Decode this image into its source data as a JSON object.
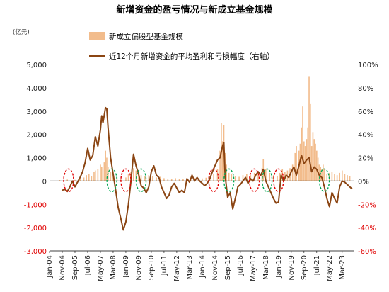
{
  "chart_data": {
    "type": "bar+line",
    "title": "新增资金的盈亏情况与新成立基金规模",
    "left_unit": "(亿元)",
    "left_ylim": [
      -3000,
      5000
    ],
    "left_ticks": [
      "5,000",
      "4,000",
      "3,000",
      "2,000",
      "1,000",
      "0",
      "-1,000",
      "-2,000",
      "-3,000"
    ],
    "right_ylim": [
      -60,
      100
    ],
    "right_ticks": [
      "100%",
      "80%",
      "60%",
      "40%",
      "20%",
      "0%",
      "-20%",
      "-40%",
      "-60%"
    ],
    "x_range": [
      "2004-01",
      "2023-12"
    ],
    "x_ticks": [
      "Jan-04",
      "Nov-04",
      "Sep-05",
      "Jul-06",
      "May-07",
      "Mar-08",
      "Jan-09",
      "Nov-09",
      "Sep-10",
      "Jul-11",
      "May-12",
      "Mar-13",
      "Jan-14",
      "Nov-14",
      "Sep-15",
      "Jul-16",
      "May-17",
      "Mar-18",
      "Jan-19",
      "Nov-19",
      "Sep-20",
      "Jul-21",
      "May-22",
      "Mar-23"
    ],
    "legend": [
      "新成立偏股型基金规模",
      "近12个月新增资金的平均盈利和亏损幅度（右轴）"
    ],
    "series": [
      {
        "name": "新成立偏股型基金规模",
        "axis": "left",
        "color": "#f2bc8c",
        "points": [
          [
            "2004-09",
            40
          ],
          [
            "2005-03",
            60
          ],
          [
            "2005-09",
            50
          ],
          [
            "2006-01",
            80
          ],
          [
            "2006-04",
            150
          ],
          [
            "2006-06",
            250
          ],
          [
            "2006-08",
            300
          ],
          [
            "2006-10",
            200
          ],
          [
            "2006-12",
            400
          ],
          [
            "2007-01",
            450
          ],
          [
            "2007-03",
            500
          ],
          [
            "2007-05",
            700
          ],
          [
            "2007-06",
            600
          ],
          [
            "2007-08",
            800
          ],
          [
            "2007-09",
            1300
          ],
          [
            "2007-10",
            1000
          ],
          [
            "2007-11",
            600
          ],
          [
            "2008-01",
            400
          ],
          [
            "2008-03",
            250
          ],
          [
            "2008-06",
            150
          ],
          [
            "2008-09",
            100
          ],
          [
            "2009-01",
            150
          ],
          [
            "2009-03",
            300
          ],
          [
            "2009-05",
            400
          ],
          [
            "2009-07",
            550
          ],
          [
            "2009-09",
            450
          ],
          [
            "2009-11",
            350
          ],
          [
            "2010-01",
            250
          ],
          [
            "2010-04",
            200
          ],
          [
            "2010-07",
            250
          ],
          [
            "2010-10",
            200
          ],
          [
            "2011-01",
            150
          ],
          [
            "2011-04",
            180
          ],
          [
            "2011-07",
            120
          ],
          [
            "2011-10",
            100
          ],
          [
            "2012-01",
            100
          ],
          [
            "2012-04",
            120
          ],
          [
            "2012-07",
            90
          ],
          [
            "2012-10",
            80
          ],
          [
            "2013-01",
            100
          ],
          [
            "2013-04",
            120
          ],
          [
            "2013-07",
            130
          ],
          [
            "2013-10",
            120
          ],
          [
            "2014-01",
            110
          ],
          [
            "2014-04",
            140
          ],
          [
            "2014-07",
            200
          ],
          [
            "2014-10",
            300
          ],
          [
            "2015-01",
            500
          ],
          [
            "2015-03",
            1300
          ],
          [
            "2015-04",
            2500
          ],
          [
            "2015-05",
            1700
          ],
          [
            "2015-06",
            2400
          ],
          [
            "2015-07",
            1200
          ],
          [
            "2015-08",
            700
          ],
          [
            "2015-10",
            350
          ],
          [
            "2015-12",
            300
          ],
          [
            "2016-03",
            200
          ],
          [
            "2016-06",
            180
          ],
          [
            "2016-09",
            250
          ],
          [
            "2016-12",
            300
          ],
          [
            "2017-03",
            250
          ],
          [
            "2017-06",
            350
          ],
          [
            "2017-09",
            400
          ],
          [
            "2017-12",
            550
          ],
          [
            "2018-01",
            950
          ],
          [
            "2018-03",
            500
          ],
          [
            "2018-06",
            350
          ],
          [
            "2018-09",
            250
          ],
          [
            "2018-12",
            200
          ],
          [
            "2019-02",
            350
          ],
          [
            "2019-04",
            500
          ],
          [
            "2019-06",
            400
          ],
          [
            "2019-08",
            450
          ],
          [
            "2019-10",
            550
          ],
          [
            "2019-12",
            700
          ],
          [
            "2020-02",
            1200
          ],
          [
            "2020-03",
            1500
          ],
          [
            "2020-05",
            1300
          ],
          [
            "2020-06",
            1600
          ],
          [
            "2020-07",
            2300
          ],
          [
            "2020-08",
            3200
          ],
          [
            "2020-09",
            1700
          ],
          [
            "2020-10",
            1500
          ],
          [
            "2020-11",
            1800
          ],
          [
            "2020-12",
            2300
          ],
          [
            "2021-01",
            4500
          ],
          [
            "2021-02",
            3300
          ],
          [
            "2021-03",
            1500
          ],
          [
            "2021-04",
            2100
          ],
          [
            "2021-05",
            1800
          ],
          [
            "2021-06",
            1600
          ],
          [
            "2021-07",
            1300
          ],
          [
            "2021-08",
            1000
          ],
          [
            "2021-09",
            700
          ],
          [
            "2021-10",
            600
          ],
          [
            "2021-11",
            500
          ],
          [
            "2021-12",
            700
          ],
          [
            "2022-01",
            500
          ],
          [
            "2022-03",
            300
          ],
          [
            "2022-05",
            350
          ],
          [
            "2022-07",
            400
          ],
          [
            "2022-09",
            300
          ],
          [
            "2022-11",
            250
          ],
          [
            "2023-01",
            350
          ],
          [
            "2023-03",
            450
          ],
          [
            "2023-05",
            300
          ],
          [
            "2023-07",
            250
          ],
          [
            "2023-09",
            200
          ]
        ]
      },
      {
        "name": "近12个月新增资金的平均盈利和亏损幅度（右轴）",
        "axis": "right",
        "color": "#8b4513",
        "points": [
          [
            "2004-11",
            -8
          ],
          [
            "2005-01",
            -7
          ],
          [
            "2005-03",
            -9
          ],
          [
            "2005-05",
            -5
          ],
          [
            "2005-07",
            0
          ],
          [
            "2005-09",
            -5
          ],
          [
            "2005-11",
            -1
          ],
          [
            "2006-01",
            3
          ],
          [
            "2006-03",
            8
          ],
          [
            "2006-05",
            16
          ],
          [
            "2006-07",
            28
          ],
          [
            "2006-09",
            18
          ],
          [
            "2006-11",
            22
          ],
          [
            "2007-01",
            38
          ],
          [
            "2007-03",
            30
          ],
          [
            "2007-05",
            44
          ],
          [
            "2007-06",
            56
          ],
          [
            "2007-07",
            50
          ],
          [
            "2007-09",
            63
          ],
          [
            "2007-10",
            62
          ],
          [
            "2007-11",
            46
          ],
          [
            "2008-01",
            20
          ],
          [
            "2008-03",
            6
          ],
          [
            "2008-05",
            -8
          ],
          [
            "2008-07",
            -23
          ],
          [
            "2008-09",
            -32
          ],
          [
            "2008-11",
            -42
          ],
          [
            "2009-01",
            -35
          ],
          [
            "2009-03",
            -20
          ],
          [
            "2009-05",
            0
          ],
          [
            "2009-07",
            23
          ],
          [
            "2009-09",
            13
          ],
          [
            "2009-11",
            6
          ],
          [
            "2010-01",
            -4
          ],
          [
            "2010-03",
            -6
          ],
          [
            "2010-05",
            -10
          ],
          [
            "2010-07",
            -5
          ],
          [
            "2010-09",
            8
          ],
          [
            "2010-11",
            13
          ],
          [
            "2011-01",
            5
          ],
          [
            "2011-03",
            3
          ],
          [
            "2011-05",
            -5
          ],
          [
            "2011-07",
            -10
          ],
          [
            "2011-09",
            -15
          ],
          [
            "2011-11",
            -12
          ],
          [
            "2012-01",
            -5
          ],
          [
            "2012-03",
            -2
          ],
          [
            "2012-05",
            -6
          ],
          [
            "2012-07",
            -10
          ],
          [
            "2012-09",
            -8
          ],
          [
            "2012-11",
            -10
          ],
          [
            "2013-01",
            2
          ],
          [
            "2013-03",
            -1
          ],
          [
            "2013-05",
            5
          ],
          [
            "2013-07",
            0
          ],
          [
            "2013-09",
            3
          ],
          [
            "2013-11",
            0
          ],
          [
            "2014-01",
            -2
          ],
          [
            "2014-03",
            -4
          ],
          [
            "2014-05",
            -2
          ],
          [
            "2014-07",
            2
          ],
          [
            "2014-09",
            8
          ],
          [
            "2014-11",
            13
          ],
          [
            "2015-01",
            18
          ],
          [
            "2015-03",
            20
          ],
          [
            "2015-05",
            30
          ],
          [
            "2015-06",
            33
          ],
          [
            "2015-07",
            5
          ],
          [
            "2015-09",
            -14
          ],
          [
            "2015-11",
            -10
          ],
          [
            "2016-01",
            -24
          ],
          [
            "2016-03",
            -15
          ],
          [
            "2016-05",
            -5
          ],
          [
            "2016-07",
            -3
          ],
          [
            "2016-09",
            0
          ],
          [
            "2016-11",
            3
          ],
          [
            "2017-01",
            -2
          ],
          [
            "2017-03",
            2
          ],
          [
            "2017-05",
            0
          ],
          [
            "2017-07",
            5
          ],
          [
            "2017-09",
            8
          ],
          [
            "2017-11",
            5
          ],
          [
            "2018-01",
            10
          ],
          [
            "2018-03",
            0
          ],
          [
            "2018-05",
            -5
          ],
          [
            "2018-07",
            -10
          ],
          [
            "2018-09",
            -15
          ],
          [
            "2018-11",
            -19
          ],
          [
            "2019-01",
            -18
          ],
          [
            "2019-03",
            5
          ],
          [
            "2019-05",
            0
          ],
          [
            "2019-07",
            5
          ],
          [
            "2019-09",
            3
          ],
          [
            "2019-11",
            8
          ],
          [
            "2020-01",
            12
          ],
          [
            "2020-03",
            5
          ],
          [
            "2020-05",
            13
          ],
          [
            "2020-07",
            22
          ],
          [
            "2020-09",
            15
          ],
          [
            "2020-11",
            18
          ],
          [
            "2021-01",
            20
          ],
          [
            "2021-03",
            8
          ],
          [
            "2021-05",
            12
          ],
          [
            "2021-07",
            10
          ],
          [
            "2021-09",
            5
          ],
          [
            "2021-11",
            3
          ],
          [
            "2022-01",
            -5
          ],
          [
            "2022-03",
            -15
          ],
          [
            "2022-05",
            -22
          ],
          [
            "2022-07",
            -10
          ],
          [
            "2022-09",
            -15
          ],
          [
            "2022-11",
            -19
          ],
          [
            "2023-01",
            -5
          ],
          [
            "2023-03",
            0
          ],
          [
            "2023-05",
            -1
          ],
          [
            "2023-07",
            -3
          ],
          [
            "2023-09",
            -5
          ],
          [
            "2023-11",
            -7
          ]
        ]
      }
    ],
    "circles": [
      {
        "date": "2005-04",
        "color": "#e00000"
      },
      {
        "date": "2008-02",
        "color": "#00a651"
      },
      {
        "date": "2009-01",
        "color": "#e00000"
      },
      {
        "date": "2010-01",
        "color": "#00a651"
      },
      {
        "date": "2014-10",
        "color": "#e00000"
      },
      {
        "date": "2015-10",
        "color": "#00a651"
      },
      {
        "date": "2017-06",
        "color": "#e00000"
      },
      {
        "date": "2018-04",
        "color": "#00a651"
      },
      {
        "date": "2019-01",
        "color": "#e00000"
      },
      {
        "date": "2022-01",
        "color": "#00a651"
      }
    ]
  }
}
